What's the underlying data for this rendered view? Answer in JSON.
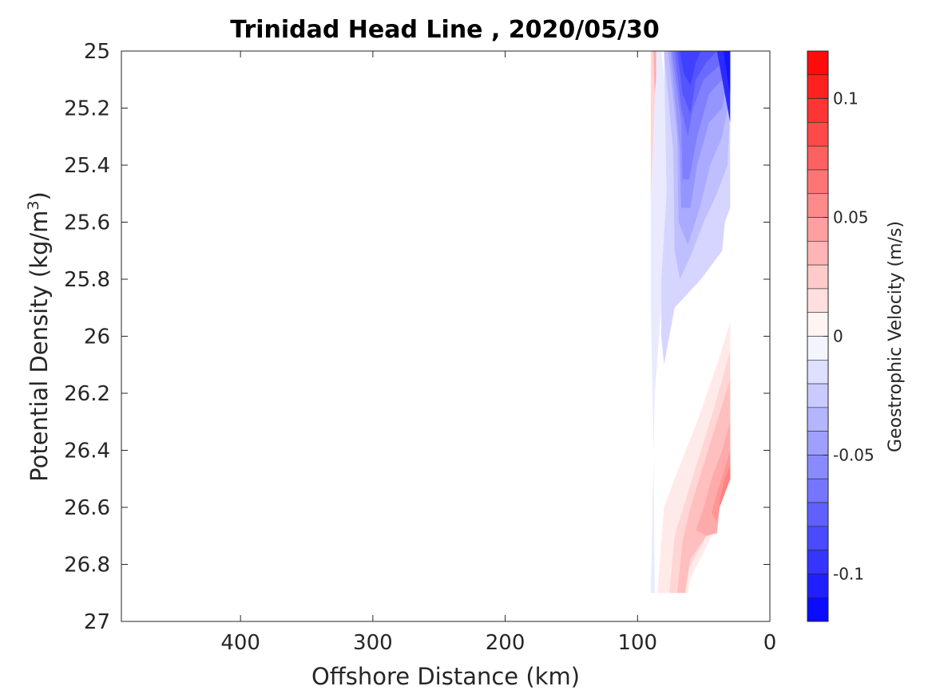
{
  "chart_data": {
    "type": "heatmap",
    "subtype": "filled-contour",
    "title": "Trinidad Head Line , 2020/05/30",
    "xlabel": "Offshore Distance (km)",
    "ylabel": "Potential Density (kg/m",
    "ylabel_superscript": "3",
    "ylabel_suffix": ")",
    "xlim": [
      490,
      0
    ],
    "x_reversed": true,
    "ylim": [
      25,
      27
    ],
    "y_reversed": true,
    "x_ticks": [
      400,
      300,
      200,
      100,
      0
    ],
    "y_ticks": [
      25,
      25.2,
      25.4,
      25.6,
      25.8,
      26,
      26.2,
      26.4,
      26.6,
      26.8,
      27
    ],
    "y_tick_labels": [
      "25",
      "25.2",
      "25.4",
      "25.6",
      "25.8",
      "26",
      "26.2",
      "26.4",
      "26.6",
      "26.8",
      "27"
    ],
    "grid": false,
    "colorbar": {
      "label": "Geostrophic Velocity (m/s)",
      "range": [
        -0.12,
        0.12
      ],
      "step": 0.01,
      "colormap": "blue-white-red",
      "negative_color": "#0000ff",
      "zero_color": "#ffffff",
      "positive_color": "#ff0000",
      "ticks": [
        0.1,
        0.05,
        0,
        -0.05,
        -0.1
      ],
      "tick_labels": [
        "0.1",
        "0.05",
        "0",
        "-0.05",
        "-0.1"
      ]
    },
    "contour_regions": [
      {
        "level": -0.01,
        "points": [
          [
            82,
            25
          ],
          [
            75,
            25.3
          ],
          [
            74,
            25.7
          ],
          [
            82,
            25.9
          ],
          [
            87,
            26.2
          ],
          [
            90,
            26.9
          ],
          [
            87,
            26.9
          ],
          [
            88,
            26.4
          ],
          [
            90,
            25.9
          ],
          [
            90,
            25.5
          ],
          [
            90,
            25
          ]
        ]
      },
      {
        "level": -0.02,
        "points": [
          [
            80,
            25
          ],
          [
            78,
            25.5
          ],
          [
            82,
            25.8
          ],
          [
            82,
            26
          ],
          [
            80,
            26.1
          ],
          [
            76,
            26.0
          ],
          [
            72,
            25.9
          ],
          [
            52,
            25.8
          ],
          [
            36,
            25.7
          ],
          [
            34,
            25.6
          ],
          [
            30,
            25.55
          ],
          [
            30,
            25.0
          ]
        ]
      },
      {
        "level": -0.03,
        "points": [
          [
            80,
            25
          ],
          [
            73,
            25.35
          ],
          [
            72,
            25.7
          ],
          [
            68,
            25.8
          ],
          [
            60,
            25.72
          ],
          [
            50,
            25.6
          ],
          [
            40,
            25.5
          ],
          [
            32,
            25.4
          ],
          [
            30,
            25.2
          ],
          [
            30,
            25.0
          ]
        ]
      },
      {
        "level": -0.04,
        "points": [
          [
            77,
            25
          ],
          [
            70,
            25.3
          ],
          [
            69,
            25.6
          ],
          [
            62,
            25.68
          ],
          [
            53,
            25.55
          ],
          [
            45,
            25.4
          ],
          [
            36,
            25.3
          ],
          [
            32,
            25.2
          ],
          [
            30,
            25.1
          ],
          [
            30,
            25.0
          ]
        ]
      },
      {
        "level": -0.05,
        "points": [
          [
            75,
            25
          ],
          [
            68,
            25.35
          ],
          [
            67,
            25.55
          ],
          [
            60,
            25.55
          ],
          [
            55,
            25.4
          ],
          [
            46,
            25.25
          ],
          [
            36,
            25.2
          ],
          [
            32,
            25.1
          ],
          [
            30,
            25.0
          ]
        ]
      },
      {
        "level": -0.06,
        "points": [
          [
            74,
            25
          ],
          [
            67,
            25.25
          ],
          [
            66,
            25.45
          ],
          [
            61,
            25.45
          ],
          [
            55,
            25.3
          ],
          [
            46,
            25.15
          ],
          [
            36,
            25.1
          ],
          [
            30,
            25.0
          ]
        ]
      },
      {
        "level": -0.07,
        "points": [
          [
            72,
            25
          ],
          [
            67,
            25.2
          ],
          [
            62,
            25.3
          ],
          [
            58,
            25.2
          ],
          [
            50,
            25.1
          ],
          [
            38,
            25.05
          ],
          [
            33,
            25.0
          ]
        ]
      },
      {
        "level": -0.08,
        "points": [
          [
            70,
            25
          ],
          [
            66,
            25.15
          ],
          [
            60,
            25.22
          ],
          [
            56,
            25.1
          ],
          [
            48,
            25.04
          ],
          [
            40,
            25.0
          ]
        ]
      },
      {
        "level": -0.09,
        "points": [
          [
            68,
            25
          ],
          [
            65,
            25.08
          ],
          [
            60,
            25.12
          ],
          [
            56,
            25.04
          ],
          [
            52,
            25.0
          ]
        ]
      },
      {
        "level": -0.1,
        "points": [
          [
            40,
            25
          ],
          [
            36,
            25.1
          ],
          [
            30,
            25.25
          ],
          [
            30,
            25.0
          ]
        ]
      },
      {
        "level": -0.11,
        "points": [
          [
            35,
            25
          ],
          [
            32,
            25.1
          ],
          [
            30,
            25.15
          ],
          [
            30,
            25.0
          ]
        ]
      },
      {
        "level": 0.01,
        "points": [
          [
            30,
            25.95
          ],
          [
            40,
            26.1
          ],
          [
            55,
            26.3
          ],
          [
            72,
            26.5
          ],
          [
            80,
            26.6
          ],
          [
            85,
            26.9
          ],
          [
            62,
            26.9
          ],
          [
            60,
            26.85
          ],
          [
            44,
            26.7
          ],
          [
            40,
            26.68
          ],
          [
            38,
            26.6
          ],
          [
            30,
            26.5
          ]
        ]
      },
      {
        "level": 0.02,
        "points": [
          [
            30,
            26.05
          ],
          [
            42,
            26.25
          ],
          [
            52,
            26.4
          ],
          [
            62,
            26.55
          ],
          [
            72,
            26.7
          ],
          [
            76,
            26.9
          ],
          [
            64,
            26.9
          ],
          [
            62,
            26.82
          ],
          [
            48,
            26.7
          ],
          [
            40,
            26.69
          ],
          [
            38,
            26.6
          ],
          [
            30,
            26.5
          ]
        ]
      },
      {
        "level": 0.03,
        "points": [
          [
            30,
            26.15
          ],
          [
            40,
            26.3
          ],
          [
            50,
            26.45
          ],
          [
            60,
            26.6
          ],
          [
            66,
            26.72
          ],
          [
            70,
            26.9
          ],
          [
            64,
            26.9
          ],
          [
            60,
            26.78
          ],
          [
            48,
            26.7
          ],
          [
            40,
            26.69
          ],
          [
            38,
            26.6
          ],
          [
            30,
            26.5
          ]
        ]
      },
      {
        "level": 0.04,
        "points": [
          [
            30,
            26.3
          ],
          [
            36,
            26.4
          ],
          [
            44,
            26.5
          ],
          [
            50,
            26.6
          ],
          [
            56,
            26.68
          ],
          [
            48,
            26.7
          ],
          [
            40,
            26.69
          ],
          [
            38,
            26.6
          ],
          [
            30,
            26.5
          ]
        ]
      },
      {
        "level": 0.05,
        "points": [
          [
            30,
            26.4
          ],
          [
            35,
            26.48
          ],
          [
            40,
            26.55
          ],
          [
            44,
            26.62
          ],
          [
            40,
            26.65
          ],
          [
            38,
            26.6
          ],
          [
            30,
            26.5
          ]
        ]
      },
      {
        "level": 0.06,
        "points": [
          [
            30,
            26.45
          ],
          [
            34,
            26.5
          ],
          [
            38,
            26.58
          ],
          [
            38,
            26.6
          ],
          [
            30,
            26.5
          ]
        ]
      },
      {
        "level": 0.02,
        "points": [
          [
            90,
            25.0
          ],
          [
            90,
            25.52
          ],
          [
            88,
            25.3
          ],
          [
            86,
            25.05
          ],
          [
            86,
            25.0
          ]
        ]
      },
      {
        "level": 0.04,
        "points": [
          [
            88,
            25.0
          ],
          [
            87,
            25.15
          ],
          [
            86,
            25.1
          ],
          [
            86,
            25.0
          ]
        ]
      }
    ]
  }
}
